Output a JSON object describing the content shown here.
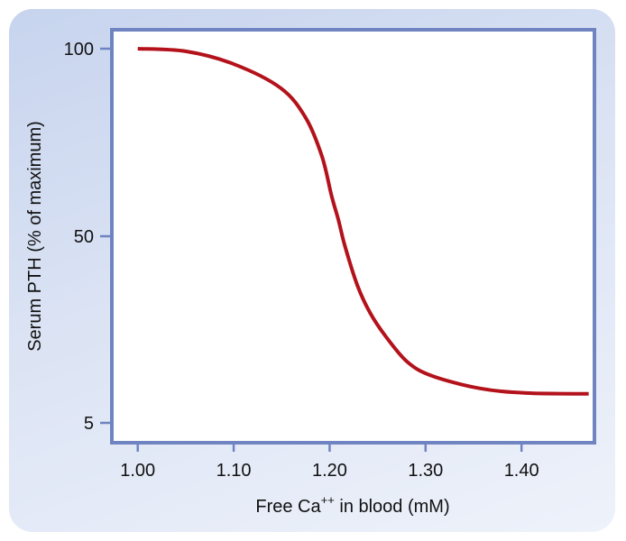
{
  "chart_data": {
    "type": "line",
    "title": "",
    "xlabel": "Free Ca++ in blood (mM)",
    "xlabel_parts": {
      "pre": "Free Ca",
      "sup": "++",
      "post": " in blood (mM)"
    },
    "ylabel": "Serum PTH (% of maximum)",
    "xlim": [
      0.973,
      1.476
    ],
    "x_ticks": [
      1.0,
      1.1,
      1.2,
      1.3,
      1.4
    ],
    "x_tick_labels": [
      "1.00",
      "1.10",
      "1.20",
      "1.30",
      "1.40"
    ],
    "y_ticks": [
      5,
      50,
      100
    ],
    "y_tick_labels": [
      "5",
      "50",
      "100"
    ],
    "grid": false,
    "colors": {
      "line": "#b3121b",
      "frame": "#6f84c0"
    },
    "series": [
      {
        "x": [
          1.0,
          1.05,
          1.1,
          1.149,
          1.175,
          1.192,
          1.202,
          1.209,
          1.216,
          1.229,
          1.242,
          1.258,
          1.281,
          1.307,
          1.357,
          1.405,
          1.47
        ],
        "y": [
          100,
          99.3,
          95.9,
          89.5,
          81.6,
          71.3,
          60.8,
          54.5,
          47.6,
          38.1,
          31.6,
          26.0,
          19.7,
          16.3,
          13.3,
          12.2,
          12.0
        ]
      }
    ]
  }
}
